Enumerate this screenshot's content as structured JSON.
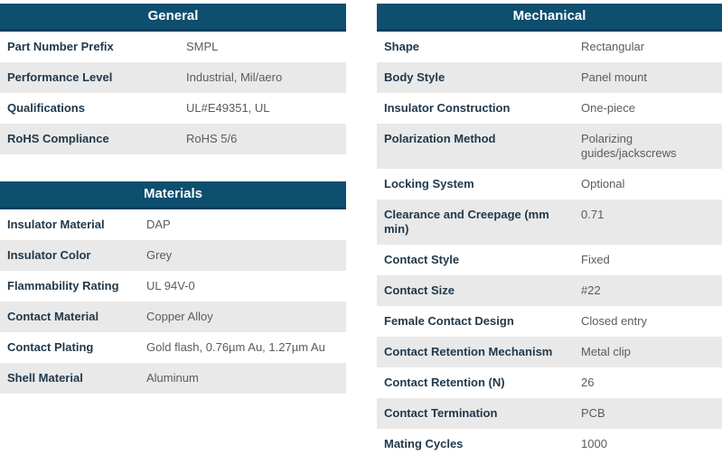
{
  "theme": {
    "header_bg": "#0e4e6e",
    "header_border": "#0a3f5c",
    "header_text": "#ffffff",
    "row_alt_bg": "#e9e9e9",
    "label_color": "#21394c",
    "value_color": "#595c5e"
  },
  "tables": {
    "general": {
      "title": "General",
      "rows": [
        {
          "label": "Part Number Prefix",
          "value": "SMPL"
        },
        {
          "label": "Performance Level",
          "value": "Industrial, Mil/aero"
        },
        {
          "label": "Qualifications",
          "value": "UL#E49351, UL"
        },
        {
          "label": "RoHS Compliance",
          "value": "RoHS 5/6"
        }
      ]
    },
    "materials": {
      "title": "Materials",
      "rows": [
        {
          "label": "Insulator Material",
          "value": "DAP"
        },
        {
          "label": "Insulator Color",
          "value": "Grey"
        },
        {
          "label": "Flammability Rating",
          "value": "UL 94V-0"
        },
        {
          "label": "Contact Material",
          "value": "Copper Alloy"
        },
        {
          "label": "Contact Plating",
          "value": "Gold flash, 0.76µm Au, 1.27µm Au"
        },
        {
          "label": "Shell Material",
          "value": "Aluminum"
        }
      ]
    },
    "mechanical": {
      "title": "Mechanical",
      "rows": [
        {
          "label": "Shape",
          "value": "Rectangular"
        },
        {
          "label": "Body Style",
          "value": "Panel mount"
        },
        {
          "label": "Insulator Construction",
          "value": "One-piece"
        },
        {
          "label": "Polarization Method",
          "value": "Polarizing guides/jackscrews"
        },
        {
          "label": "Locking System",
          "value": "Optional"
        },
        {
          "label": "Clearance and Creepage (mm min)",
          "value": "0.71"
        },
        {
          "label": "Contact Style",
          "value": "Fixed"
        },
        {
          "label": "Contact Size",
          "value": "#22"
        },
        {
          "label": "Female Contact Design",
          "value": "Closed entry"
        },
        {
          "label": "Contact Retention Mechanism",
          "value": "Metal clip"
        },
        {
          "label": "Contact Retention (N)",
          "value": "26"
        },
        {
          "label": "Contact Termination",
          "value": "PCB"
        },
        {
          "label": "Mating Cycles",
          "value": "1000"
        }
      ]
    }
  }
}
